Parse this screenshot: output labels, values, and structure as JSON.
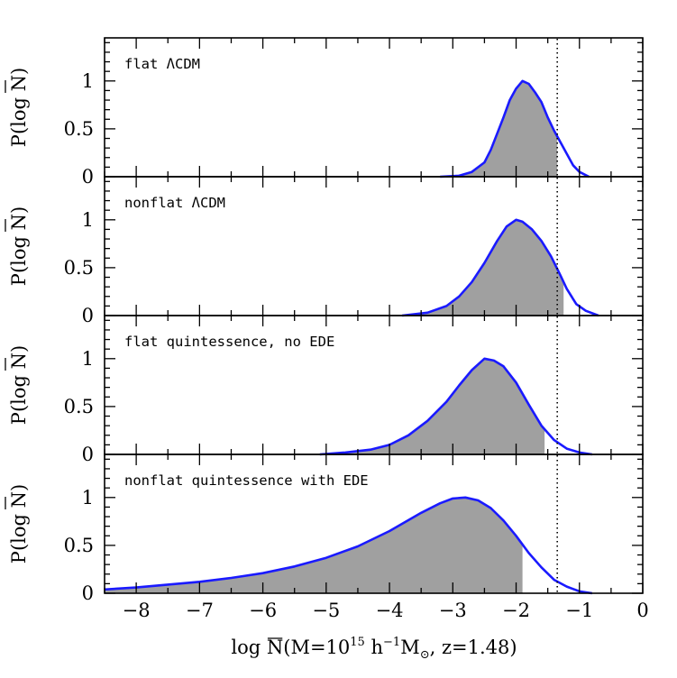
{
  "chart_data": [
    {
      "type": "area",
      "label": "flat ΛCDM",
      "ylabel": "P(log N̄)",
      "xlim": [
        -8.5,
        0
      ],
      "ylim": [
        0,
        1.45
      ],
      "shade_max_x": -1.35,
      "reference_x": -1.35,
      "x": [
        -3.2,
        -2.9,
        -2.7,
        -2.5,
        -2.4,
        -2.3,
        -2.2,
        -2.1,
        -2.0,
        -1.9,
        -1.8,
        -1.7,
        -1.6,
        -1.5,
        -1.4,
        -1.3,
        -1.2,
        -1.1,
        -1.0,
        -0.85
      ],
      "y": [
        0.0,
        0.01,
        0.05,
        0.15,
        0.28,
        0.45,
        0.62,
        0.8,
        0.92,
        1.0,
        0.97,
        0.88,
        0.78,
        0.62,
        0.48,
        0.36,
        0.24,
        0.12,
        0.05,
        0.0
      ]
    },
    {
      "type": "area",
      "label": "nonflat ΛCDM",
      "ylabel": "P(log N̄)",
      "xlim": [
        -8.5,
        0
      ],
      "ylim": [
        0,
        1.45
      ],
      "shade_max_x": -1.25,
      "reference_x": -1.35,
      "x": [
        -3.8,
        -3.4,
        -3.1,
        -2.9,
        -2.7,
        -2.5,
        -2.3,
        -2.15,
        -2.0,
        -1.9,
        -1.75,
        -1.6,
        -1.45,
        -1.3,
        -1.2,
        -1.05,
        -0.9,
        -0.7
      ],
      "y": [
        0.0,
        0.03,
        0.1,
        0.2,
        0.35,
        0.55,
        0.78,
        0.93,
        1.0,
        0.98,
        0.9,
        0.78,
        0.62,
        0.42,
        0.28,
        0.12,
        0.05,
        0.0
      ]
    },
    {
      "type": "area",
      "label": "flat quintessence, no EDE",
      "ylabel": "P(log N̄)",
      "xlim": [
        -8.5,
        0
      ],
      "ylim": [
        0,
        1.45
      ],
      "shade_max_x": -1.55,
      "reference_x": -1.35,
      "x": [
        -5.1,
        -4.7,
        -4.3,
        -4.0,
        -3.7,
        -3.4,
        -3.1,
        -2.9,
        -2.7,
        -2.5,
        -2.35,
        -2.2,
        -2.0,
        -1.8,
        -1.6,
        -1.4,
        -1.2,
        -1.0,
        -0.8
      ],
      "y": [
        0.0,
        0.02,
        0.05,
        0.1,
        0.2,
        0.35,
        0.55,
        0.72,
        0.88,
        1.0,
        0.98,
        0.92,
        0.75,
        0.52,
        0.3,
        0.15,
        0.06,
        0.02,
        0.0
      ]
    },
    {
      "type": "area",
      "label": "nonflat quintessence with EDE",
      "ylabel": "P(log N̄)",
      "xlim": [
        -8.5,
        0
      ],
      "ylim": [
        0,
        1.45
      ],
      "shade_max_x": -1.9,
      "reference_x": -1.35,
      "x": [
        -8.5,
        -8.0,
        -7.5,
        -7.0,
        -6.5,
        -6.0,
        -5.5,
        -5.0,
        -4.5,
        -4.0,
        -3.5,
        -3.2,
        -3.0,
        -2.8,
        -2.6,
        -2.4,
        -2.2,
        -2.0,
        -1.8,
        -1.6,
        -1.4,
        -1.2,
        -1.0,
        -0.8
      ],
      "y": [
        0.04,
        0.06,
        0.09,
        0.12,
        0.16,
        0.21,
        0.28,
        0.37,
        0.49,
        0.65,
        0.84,
        0.94,
        0.99,
        1.0,
        0.97,
        0.89,
        0.76,
        0.6,
        0.42,
        0.27,
        0.14,
        0.07,
        0.02,
        0.0
      ]
    }
  ],
  "axes": {
    "ytick_labels": [
      "0",
      "0.5",
      "1"
    ],
    "ytick_values": [
      0,
      0.5,
      1
    ],
    "xtick_labels": [
      "−8",
      "−7",
      "−6",
      "−5",
      "−4",
      "−3",
      "−2",
      "−1",
      "0"
    ],
    "xtick_values": [
      -8,
      -7,
      -6,
      -5,
      -4,
      -3,
      -2,
      -1,
      0
    ],
    "xlabel_prefix": "log ",
    "xlabel_N": "N",
    "xlabel_body": "(M=10",
    "xlabel_exp1": "15",
    "xlabel_h": " h",
    "xlabel_exp2": "−1",
    "xlabel_M": "M",
    "xlabel_sun": "⊙",
    "xlabel_tail": ", z=1.48)",
    "ylabel_prefix": "P(log ",
    "ylabel_N": "N",
    "ylabel_suffix": ")"
  },
  "colors": {
    "curve": "#1a1aff",
    "shade": "#a0a0a0",
    "frame": "#000000"
  }
}
